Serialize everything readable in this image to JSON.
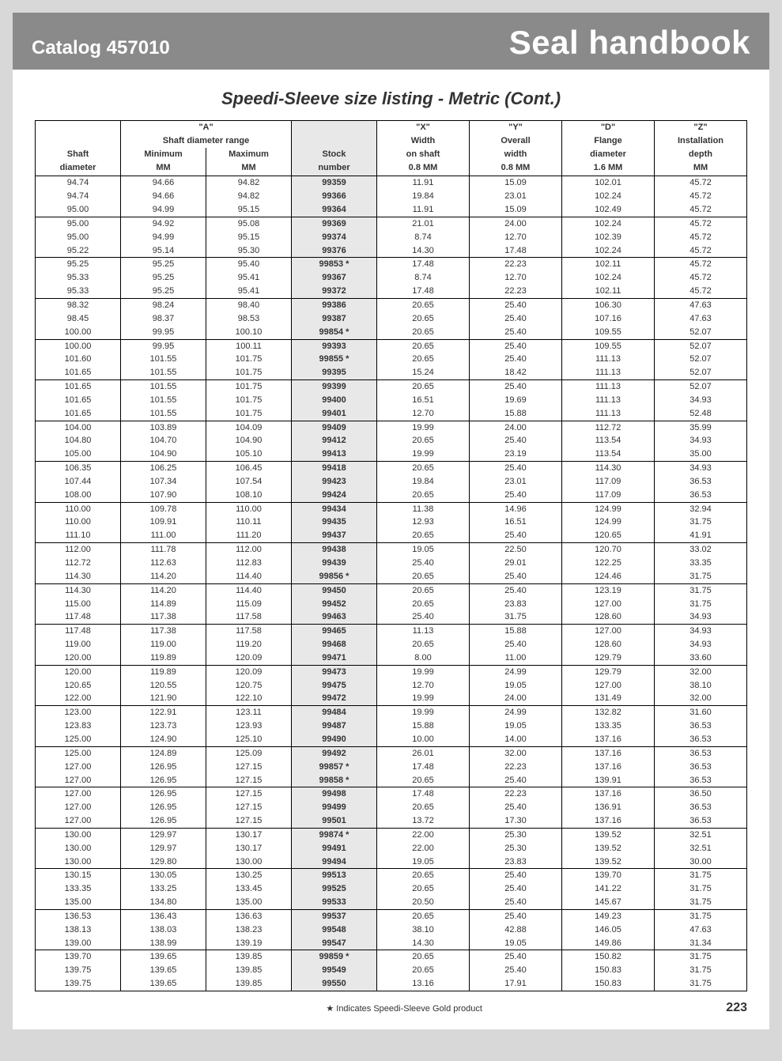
{
  "header": {
    "catalog_label": "Catalog 457010",
    "title": "Seal handbook"
  },
  "subtitle": "Speedi-Sleeve size listing - Metric (Cont.)",
  "columns": {
    "widths_pct": [
      12,
      12,
      12,
      12,
      13,
      13,
      13,
      13
    ],
    "top": [
      "",
      "\"A\"",
      "",
      "\"X\"",
      "\"Y\"",
      "\"D\"",
      "\"Z\""
    ],
    "mid1": [
      "",
      "Shaft diameter range",
      "",
      "Width",
      "Overall",
      "Flange",
      "Installation"
    ],
    "mid2": [
      "Shaft",
      "Minimum",
      "Maximum",
      "Stock",
      "on shaft",
      "width",
      "diameter",
      "depth"
    ],
    "bot": [
      "diameter",
      "MM",
      "MM",
      "number",
      "0.8 MM",
      "0.8 MM",
      "1.6 MM",
      "MM"
    ]
  },
  "groups": [
    [
      [
        "94.74",
        "94.66",
        "94.82",
        "99359",
        "11.91",
        "15.09",
        "102.01",
        "45.72"
      ],
      [
        "94.74",
        "94.66",
        "94.82",
        "99366",
        "19.84",
        "23.01",
        "102.24",
        "45.72"
      ],
      [
        "95.00",
        "94.99",
        "95.15",
        "99364",
        "11.91",
        "15.09",
        "102.49",
        "45.72"
      ]
    ],
    [
      [
        "95.00",
        "94.92",
        "95.08",
        "99369",
        "21.01",
        "24.00",
        "102.24",
        "45.72"
      ],
      [
        "95.00",
        "94.99",
        "95.15",
        "99374",
        "8.74",
        "12.70",
        "102.39",
        "45.72"
      ],
      [
        "95.22",
        "95.14",
        "95.30",
        "99376",
        "14.30",
        "17.48",
        "102.24",
        "45.72"
      ]
    ],
    [
      [
        "95.25",
        "95.25",
        "95.40",
        "99853 *",
        "17.48",
        "22.23",
        "102.11",
        "45.72"
      ],
      [
        "95.33",
        "95.25",
        "95.41",
        "99367",
        "8.74",
        "12.70",
        "102.24",
        "45.72"
      ],
      [
        "95.33",
        "95.25",
        "95.41",
        "99372",
        "17.48",
        "22.23",
        "102.11",
        "45.72"
      ]
    ],
    [
      [
        "98.32",
        "98.24",
        "98.40",
        "99386",
        "20.65",
        "25.40",
        "106.30",
        "47.63"
      ],
      [
        "98.45",
        "98.37",
        "98.53",
        "99387",
        "20.65",
        "25.40",
        "107.16",
        "47.63"
      ],
      [
        "100.00",
        "99.95",
        "100.10",
        "99854 *",
        "20.65",
        "25.40",
        "109.55",
        "52.07"
      ]
    ],
    [
      [
        "100.00",
        "99.95",
        "100.11",
        "99393",
        "20.65",
        "25.40",
        "109.55",
        "52.07"
      ],
      [
        "101.60",
        "101.55",
        "101.75",
        "99855 *",
        "20.65",
        "25.40",
        "111.13",
        "52.07"
      ],
      [
        "101.65",
        "101.55",
        "101.75",
        "99395",
        "15.24",
        "18.42",
        "111.13",
        "52.07"
      ]
    ],
    [
      [
        "101.65",
        "101.55",
        "101.75",
        "99399",
        "20.65",
        "25.40",
        "111.13",
        "52.07"
      ],
      [
        "101.65",
        "101.55",
        "101.75",
        "99400",
        "16.51",
        "19.69",
        "111.13",
        "34.93"
      ],
      [
        "101.65",
        "101.55",
        "101.75",
        "99401",
        "12.70",
        "15.88",
        "111.13",
        "52.48"
      ]
    ],
    [
      [
        "104.00",
        "103.89",
        "104.09",
        "99409",
        "19.99",
        "24.00",
        "112.72",
        "35.99"
      ],
      [
        "104.80",
        "104.70",
        "104.90",
        "99412",
        "20.65",
        "25.40",
        "113.54",
        "34.93"
      ],
      [
        "105.00",
        "104.90",
        "105.10",
        "99413",
        "19.99",
        "23.19",
        "113.54",
        "35.00"
      ]
    ],
    [
      [
        "106.35",
        "106.25",
        "106.45",
        "99418",
        "20.65",
        "25.40",
        "114.30",
        "34.93"
      ],
      [
        "107.44",
        "107.34",
        "107.54",
        "99423",
        "19.84",
        "23.01",
        "117.09",
        "36.53"
      ],
      [
        "108.00",
        "107.90",
        "108.10",
        "99424",
        "20.65",
        "25.40",
        "117.09",
        "36.53"
      ]
    ],
    [
      [
        "110.00",
        "109.78",
        "110.00",
        "99434",
        "11.38",
        "14.96",
        "124.99",
        "32.94"
      ],
      [
        "110.00",
        "109.91",
        "110.11",
        "99435",
        "12.93",
        "16.51",
        "124.99",
        "31.75"
      ],
      [
        "111.10",
        "111.00",
        "111.20",
        "99437",
        "20.65",
        "25.40",
        "120.65",
        "41.91"
      ]
    ],
    [
      [
        "112.00",
        "111.78",
        "112.00",
        "99438",
        "19.05",
        "22.50",
        "120.70",
        "33.02"
      ],
      [
        "112.72",
        "112.63",
        "112.83",
        "99439",
        "25.40",
        "29.01",
        "122.25",
        "33.35"
      ],
      [
        "114.30",
        "114.20",
        "114.40",
        "99856 *",
        "20.65",
        "25.40",
        "124.46",
        "31.75"
      ]
    ],
    [
      [
        "114.30",
        "114.20",
        "114.40",
        "99450",
        "20.65",
        "25.40",
        "123.19",
        "31.75"
      ],
      [
        "115.00",
        "114.89",
        "115.09",
        "99452",
        "20.65",
        "23.83",
        "127.00",
        "31.75"
      ],
      [
        "117.48",
        "117.38",
        "117.58",
        "99463",
        "25.40",
        "31.75",
        "128.60",
        "34.93"
      ]
    ],
    [
      [
        "117.48",
        "117.38",
        "117.58",
        "99465",
        "11.13",
        "15.88",
        "127.00",
        "34.93"
      ],
      [
        "119.00",
        "119.00",
        "119.20",
        "99468",
        "20.65",
        "25.40",
        "128.60",
        "34.93"
      ],
      [
        "120.00",
        "119.89",
        "120.09",
        "99471",
        "8.00",
        "11.00",
        "129.79",
        "33.60"
      ]
    ],
    [
      [
        "120.00",
        "119.89",
        "120.09",
        "99473",
        "19.99",
        "24.99",
        "129.79",
        "32.00"
      ],
      [
        "120.65",
        "120.55",
        "120.75",
        "99475",
        "12.70",
        "19.05",
        "127.00",
        "38.10"
      ],
      [
        "122.00",
        "121.90",
        "122.10",
        "99472",
        "19.99",
        "24.00",
        "131.49",
        "32.00"
      ]
    ],
    [
      [
        "123.00",
        "122.91",
        "123.11",
        "99484",
        "19.99",
        "24.99",
        "132.82",
        "31.60"
      ],
      [
        "123.83",
        "123.73",
        "123.93",
        "99487",
        "15.88",
        "19.05",
        "133.35",
        "36.53"
      ],
      [
        "125.00",
        "124.90",
        "125.10",
        "99490",
        "10.00",
        "14.00",
        "137.16",
        "36.53"
      ]
    ],
    [
      [
        "125.00",
        "124.89",
        "125.09",
        "99492",
        "26.01",
        "32.00",
        "137.16",
        "36.53"
      ],
      [
        "127.00",
        "126.95",
        "127.15",
        "99857 *",
        "17.48",
        "22.23",
        "137.16",
        "36.53"
      ],
      [
        "127.00",
        "126.95",
        "127.15",
        "99858 *",
        "20.65",
        "25.40",
        "139.91",
        "36.53"
      ]
    ],
    [
      [
        "127.00",
        "126.95",
        "127.15",
        "99498",
        "17.48",
        "22.23",
        "137.16",
        "36.50"
      ],
      [
        "127.00",
        "126.95",
        "127.15",
        "99499",
        "20.65",
        "25.40",
        "136.91",
        "36.53"
      ],
      [
        "127.00",
        "126.95",
        "127.15",
        "99501",
        "13.72",
        "17.30",
        "137.16",
        "36.53"
      ]
    ],
    [
      [
        "130.00",
        "129.97",
        "130.17",
        "99874 *",
        "22.00",
        "25.30",
        "139.52",
        "32.51"
      ],
      [
        "130.00",
        "129.97",
        "130.17",
        "99491",
        "22.00",
        "25.30",
        "139.52",
        "32.51"
      ],
      [
        "130.00",
        "129.80",
        "130.00",
        "99494",
        "19.05",
        "23.83",
        "139.52",
        "30.00"
      ]
    ],
    [
      [
        "130.15",
        "130.05",
        "130.25",
        "99513",
        "20.65",
        "25.40",
        "139.70",
        "31.75"
      ],
      [
        "133.35",
        "133.25",
        "133.45",
        "99525",
        "20.65",
        "25.40",
        "141.22",
        "31.75"
      ],
      [
        "135.00",
        "134.80",
        "135.00",
        "99533",
        "20.50",
        "25.40",
        "145.67",
        "31.75"
      ]
    ],
    [
      [
        "136.53",
        "136.43",
        "136.63",
        "99537",
        "20.65",
        "25.40",
        "149.23",
        "31.75"
      ],
      [
        "138.13",
        "138.03",
        "138.23",
        "99548",
        "38.10",
        "42.88",
        "146.05",
        "47.63"
      ],
      [
        "139.00",
        "138.99",
        "139.19",
        "99547",
        "14.30",
        "19.05",
        "149.86",
        "31.34"
      ]
    ],
    [
      [
        "139.70",
        "139.65",
        "139.85",
        "99859 *",
        "20.65",
        "25.40",
        "150.82",
        "31.75"
      ],
      [
        "139.75",
        "139.65",
        "139.85",
        "99549",
        "20.65",
        "25.40",
        "150.83",
        "31.75"
      ],
      [
        "139.75",
        "139.65",
        "139.85",
        "99550",
        "13.16",
        "17.91",
        "150.83",
        "31.75"
      ]
    ]
  ],
  "footnote": "★ Indicates Speedi-Sleeve Gold product",
  "page_number": "223",
  "colors": {
    "page_bg": "#d8d8d8",
    "header_bg": "#8a8a8a",
    "header_fg": "#ffffff",
    "stock_bg": "#e8e8e8",
    "rule": "#000000",
    "text": "#333333"
  }
}
